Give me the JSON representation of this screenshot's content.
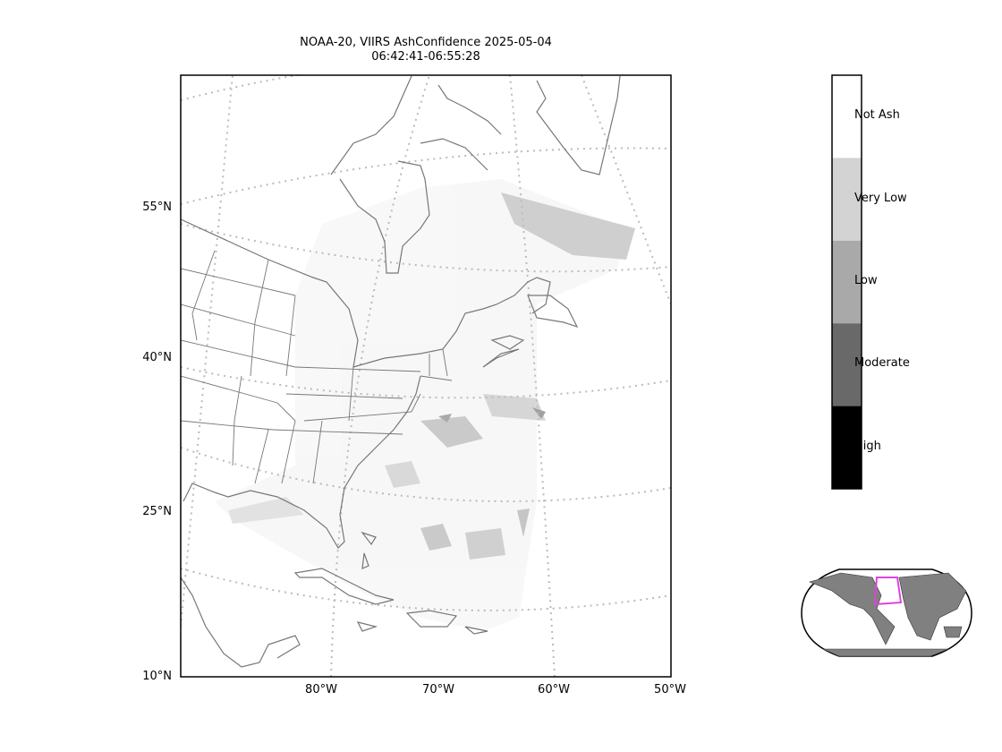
{
  "title": {
    "line1": "NOAA-20, VIIRS AshConfidence 2025-05-04",
    "line2": "06:42:41-06:55:28"
  },
  "latitude_labels": [
    "55°N",
    "40°N",
    "25°N",
    "10°N"
  ],
  "longitude_labels": [
    "80°W",
    "70°W",
    "60°W",
    "50°W"
  ],
  "colorbar": {
    "categories": [
      {
        "label": "Not Ash",
        "color": "#ffffff"
      },
      {
        "label": "Very Low",
        "color": "#d3d3d3"
      },
      {
        "label": "Low",
        "color": "#a9a9a9"
      },
      {
        "label": "Moderate",
        "color": "#696969"
      },
      {
        "label": "High",
        "color": "#000000"
      }
    ]
  },
  "colors": {
    "coastline": "#777777",
    "gridline": "#bbbbbb",
    "inset_land": "#808080",
    "inset_box": "#dd44dd"
  }
}
